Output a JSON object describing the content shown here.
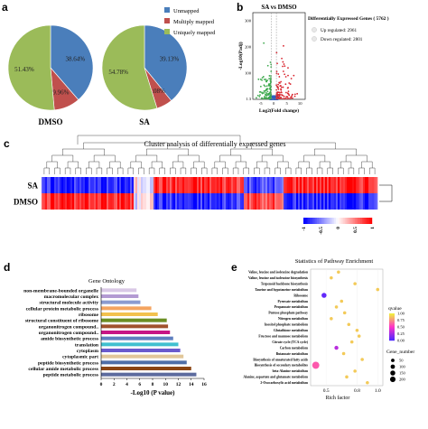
{
  "panel_labels": [
    "a",
    "b",
    "c",
    "d",
    "e"
  ],
  "chart_data": [
    {
      "type": "pie",
      "panel": "a",
      "title": "DMSO",
      "categories": [
        "Unmapped",
        "Multiply mapped",
        "Uniquely mapped"
      ],
      "values": [
        38.64,
        9.96,
        51.43
      ],
      "labels": [
        "38.64%",
        "9.96%",
        "51.43%"
      ],
      "colors": [
        "#4a7ebb",
        "#c0504d",
        "#9bbb59"
      ],
      "legend": "right"
    },
    {
      "type": "pie",
      "panel": "a",
      "title": "SA",
      "categories": [
        "Unmapped",
        "Multiply mapped",
        "Uniquely mapped"
      ],
      "values": [
        39.13,
        6.08,
        54.78
      ],
      "labels": [
        "39.13%",
        "6.08%",
        "54.78%"
      ],
      "colors": [
        "#4a7ebb",
        "#c0504d",
        "#9bbb59"
      ]
    },
    {
      "type": "scatter",
      "panel": "b",
      "title": "SA vs DMSO",
      "xlabel": "Log2(Fold change)",
      "ylabel": "-Log10(Padj)",
      "xticks": [
        "-5",
        "0",
        "5",
        "10"
      ],
      "yticks": [
        "1.3",
        "100",
        "200",
        "300"
      ],
      "legend_title": "Differentially Expressed Genes ( 5762 )",
      "series": [
        {
          "name": "Up regulated: 2961",
          "color": "#d9262f"
        },
        {
          "name": "Down regulated: 2801",
          "color": "#3aa84a"
        }
      ],
      "non_significant_color": "#3060c0"
    },
    {
      "type": "heatmap",
      "panel": "c",
      "title": "Cluster analysis of differentially expressed genes",
      "rows": [
        "SA",
        "DMSO"
      ],
      "colorbar_ticks": [
        "-1",
        "-0.5",
        "0",
        "0.5",
        "1"
      ],
      "colorscale": [
        "#0000ff",
        "#ffffff",
        "#ff0000"
      ]
    },
    {
      "type": "bar",
      "panel": "d",
      "title": "Gene Ontology",
      "orientation": "horizontal",
      "xlabel": "-Log10 (P value)",
      "xticks": [
        "0",
        "2",
        "4",
        "6",
        "8",
        "10",
        "12",
        "14",
        "16"
      ],
      "xlim": [
        0,
        16
      ],
      "categories": [
        "non-membrane-bounded organelle",
        "macromolecular complex",
        "structural molecule activity",
        "cellular protein metabolic process",
        "ribosome",
        "structural constituent of ribosome",
        "organonitrogen compound..",
        "organonitrogen compound..",
        "amide biosynthetic process",
        "translation",
        "cytoplasm",
        "cytoplasmic part",
        "peptide biosynthetic process",
        "cellular amide metabolic process",
        "peptide metabolic process"
      ],
      "values": [
        5.5,
        5.8,
        6.1,
        7.8,
        8.8,
        10.2,
        10.4,
        10.7,
        11.2,
        12.0,
        12.3,
        12.8,
        13.3,
        14.0,
        14.8
      ],
      "colors": [
        "#d9c8e6",
        "#b39ad2",
        "#8b9bd0",
        "#f4a460",
        "#f2c14e",
        "#6b8e23",
        "#a0522d",
        "#c71585",
        "#5f7fbf",
        "#40c0d0",
        "#6a5acd",
        "#e1c699",
        "#4f6fa8",
        "#8b4513",
        "#5c6b9e"
      ]
    },
    {
      "type": "scatter",
      "panel": "e",
      "title": "Statistics of Pathway Enrichment",
      "xlabel": "Rich factor",
      "xticks": [
        "0.5",
        "0.8",
        "1.0"
      ],
      "xlim": [
        0.35,
        1.05
      ],
      "categories": [
        "Valine, leucine and isoleucine degradation",
        "Valine, leucine and isoleucine biosynthesis",
        "Terpenoid backbone biosynthesis",
        "Taurine and hypotaurine metabolism",
        "Ribosome",
        "Pyruvate metabolism",
        "Propanoate metabolism",
        "Pentose phosphate pathway",
        "Nitrogen metabolism",
        "Inositol phosphate metabolism",
        "Glutathione metabolism",
        "Fructose and mannose metabolism",
        "Citrate cycle (TCA cycle)",
        "Carbon metabolism",
        "Butanoate metabolism",
        "Biosynthesis of unsaturated fatty acids",
        "Biosynthesis of secondary metabolites",
        "beta-Alanine metabolism",
        "Alanine, aspartate and glutamate metabolism",
        "2-Oxocarboxylic acid metabolism"
      ],
      "points": [
        {
          "x": 0.62,
          "size": 20,
          "q": 0.9
        },
        {
          "x": 0.55,
          "size": 20,
          "q": 0.9
        },
        {
          "x": 0.78,
          "size": 20,
          "q": 0.9
        },
        {
          "x": 1.0,
          "size": 20,
          "q": 0.9
        },
        {
          "x": 0.48,
          "size": 80,
          "q": 0.05
        },
        {
          "x": 0.65,
          "size": 20,
          "q": 0.9
        },
        {
          "x": 0.6,
          "size": 20,
          "q": 0.9
        },
        {
          "x": 0.68,
          "size": 20,
          "q": 0.9
        },
        {
          "x": 0.55,
          "size": 20,
          "q": 0.9
        },
        {
          "x": 0.72,
          "size": 20,
          "q": 0.9
        },
        {
          "x": 0.8,
          "size": 20,
          "q": 0.9
        },
        {
          "x": 0.82,
          "size": 20,
          "q": 0.9
        },
        {
          "x": 0.75,
          "size": 20,
          "q": 0.9
        },
        {
          "x": 0.6,
          "size": 40,
          "q": 0.3
        },
        {
          "x": 0.67,
          "size": 20,
          "q": 0.9
        },
        {
          "x": 0.85,
          "size": 20,
          "q": 0.9
        },
        {
          "x": 0.4,
          "size": 200,
          "q": 0.6
        },
        {
          "x": 0.78,
          "size": 20,
          "q": 0.9
        },
        {
          "x": 0.7,
          "size": 20,
          "q": 0.9
        },
        {
          "x": 0.9,
          "size": 20,
          "q": 0.9
        }
      ],
      "colorbar_title": "qvalue",
      "colorbar_ticks": [
        "1.00",
        "0.75",
        "0.50",
        "0.25",
        "0.00"
      ],
      "size_legend_title": "Gene_number",
      "size_legend": [
        50,
        100,
        150,
        200
      ]
    }
  ]
}
